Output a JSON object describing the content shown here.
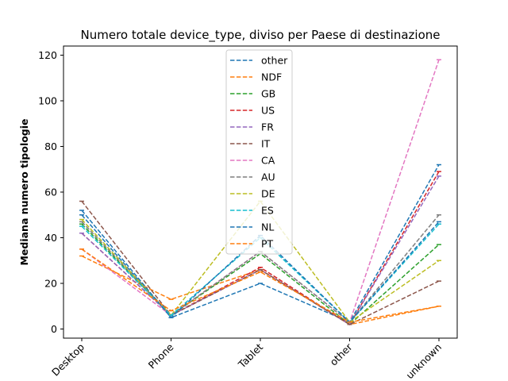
{
  "chart_data": {
    "type": "line",
    "title": "Numero totale device_type, diviso per Paese di destinazione",
    "xlabel": "",
    "ylabel": "Mediana numero tipologie",
    "categories": [
      "Desktop",
      "Phone",
      "Tablet",
      "other",
      "unknown"
    ],
    "ylim": [
      -4,
      124
    ],
    "yticks": [
      0,
      20,
      40,
      60,
      80,
      100,
      120
    ],
    "grid": false,
    "legend_position": "top-center",
    "line_style": "dashed",
    "series": [
      {
        "name": "other",
        "color": "#1f77b4",
        "values": [
          50,
          5,
          20,
          3,
          72
        ]
      },
      {
        "name": "NDF",
        "color": "#ff7f0e",
        "values": [
          32,
          13,
          26,
          2,
          10
        ]
      },
      {
        "name": "GB",
        "color": "#2ca02c",
        "values": [
          46,
          6,
          33,
          2,
          37
        ]
      },
      {
        "name": "US",
        "color": "#d62728",
        "values": [
          42,
          6,
          27,
          2,
          69
        ]
      },
      {
        "name": "FR",
        "color": "#9467bd",
        "values": [
          42,
          6,
          26,
          2,
          67
        ]
      },
      {
        "name": "IT",
        "color": "#8c564b",
        "values": [
          56,
          6,
          26,
          2,
          21
        ]
      },
      {
        "name": "CA",
        "color": "#e377c2",
        "values": [
          35,
          6,
          34,
          3,
          118
        ]
      },
      {
        "name": "AU",
        "color": "#7f7f7f",
        "values": [
          47,
          6,
          34,
          3,
          50
        ]
      },
      {
        "name": "DE",
        "color": "#bcbd22",
        "values": [
          48,
          6,
          56,
          3,
          30
        ]
      },
      {
        "name": "ES",
        "color": "#17becf",
        "values": [
          45,
          6,
          40,
          3,
          46
        ]
      },
      {
        "name": "NL",
        "color": "#1f77b4",
        "values": [
          52,
          5,
          41,
          3,
          47
        ]
      },
      {
        "name": "PT",
        "color": "#ff7f0e",
        "values": [
          35,
          8,
          25,
          3,
          10
        ]
      }
    ]
  }
}
